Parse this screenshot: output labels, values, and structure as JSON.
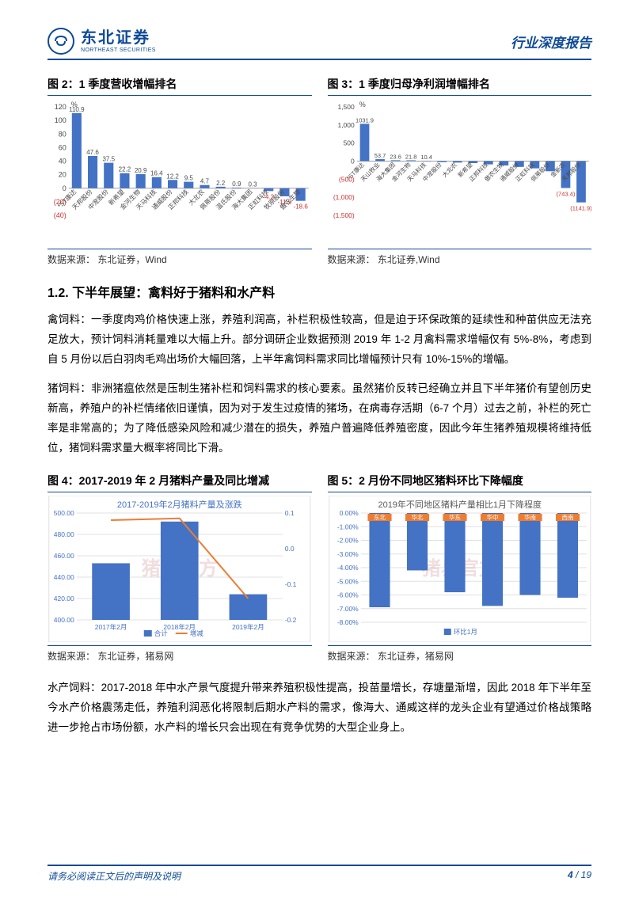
{
  "header": {
    "logo_cn": "东北证券",
    "logo_en": "NORTHEAST SECURITIES",
    "report_type": "行业深度报告"
  },
  "fig2": {
    "title": "图 2：1 季度营收增幅排名",
    "source": "数据来源： 东北证券，Wind",
    "type": "bar",
    "unit": "%",
    "ylim": [
      -40,
      120
    ],
    "ytick_step": 20,
    "bar_color": "#4472c4",
    "axis_color": "#9e9e9e",
    "neg_color": "#d03030",
    "categories": [
      "*ST康达",
      "天邦股份",
      "中宠股份",
      "新希望",
      "金河生物",
      "天马科技",
      "通威股份",
      "正邦科技",
      "大北农",
      "佩蒂股份",
      "温氏股份",
      "海大集团",
      "正虹科技",
      "牧原股份",
      "傲农生物"
    ],
    "values": [
      110.9,
      47.6,
      37.5,
      22.2,
      20.9,
      16.4,
      12.2,
      9.5,
      4.7,
      2.2,
      0.9,
      0.3,
      -4.2,
      -11.9,
      -18.6
    ]
  },
  "fig3": {
    "title": "图 3：1 季度归母净利润增幅排名",
    "source": "数据来源： 东北证券,Wind",
    "type": "bar",
    "unit": "%",
    "ylim": [
      -1500,
      1500
    ],
    "ytick_step": 500,
    "bar_color": "#4472c4",
    "axis_color": "#9e9e9e",
    "neg_color": "#d03030",
    "categories": [
      "*ST康达",
      "天山牧业",
      "海大集团",
      "金河生物",
      "天马科技",
      "中宠股份",
      "大北农",
      "新希望",
      "正邦科技",
      "傲农生物",
      "通威股份",
      "正虹科技",
      "佩蒂股份",
      "金新农",
      "天邦股份"
    ],
    "values": [
      1031.9,
      53.7,
      23.6,
      21.8,
      10.4,
      -28,
      -40,
      -55,
      -90,
      -120,
      -160,
      -200,
      -280,
      -743.4,
      -1141.9
    ]
  },
  "section12": {
    "heading": "1.2.   下半年展望：禽料好于猪料和水产料",
    "para1": "禽饲料：一季度肉鸡价格快速上涨，养殖利润高，补栏积极性较高，但是迫于环保政策的延续性和种苗供应无法充足放大，预计饲料消耗量难以大幅上升。部分调研企业数据预测 2019 年 1-2 月禽料需求增幅仅有 5%-8%，考虑到自 5 月份以后白羽肉毛鸡出场价大幅回落，上半年禽饲料需求同比增幅预计只有 10%-15%的增幅。",
    "para2": "猪饲料：非洲猪瘟依然是压制生猪补栏和饲料需求的核心要素。虽然猪价反转已经确立并且下半年猪价有望创历史新高，养殖户的补栏情绪依旧谨慎，因为对于发生过疫情的猪场，在病毒存活期（6-7 个月）过去之前，补栏的死亡率是非常高的；为了降低感染风险和减少潜在的损失，养殖户普遍降低养殖密度，因此今年生猪养殖规模将维持低位，猪饲料需求量大概率将同比下滑。"
  },
  "fig4": {
    "title": "图 4：2017-2019 年 2 月猪料产量及同比增减",
    "inner_title": "2017-2019年2月猪料产量及涨跌",
    "source": "数据来源： 东北证券，猪易网",
    "type": "bar_line",
    "bar_color": "#4472c4",
    "line_color": "#ed7d31",
    "grid_color": "#e0e0e0",
    "xcategories": [
      "2017年2月",
      "2018年2月",
      "2019年2月"
    ],
    "bar_values": [
      453,
      492,
      424
    ],
    "left_ylim": [
      400,
      500
    ],
    "left_step": 20,
    "line_values": [
      0.08,
      0.085,
      -0.14
    ],
    "right_ylim": [
      -0.2,
      0.1
    ],
    "right_step": 0.1,
    "legend": [
      "合计",
      "增减"
    ],
    "watermark": "猪易官方"
  },
  "fig5": {
    "title": "图 5：2 月份不同地区猪料环比下降幅度",
    "inner_title": "2019年不同地区猪料产量相比1月下降程度",
    "source": "数据来源： 东北证券，猪易网",
    "type": "bar",
    "bar_color": "#4472c4",
    "accent_color": "#ed7d31",
    "grid_color": "#e0e0e0",
    "ylim": [
      -8,
      0
    ],
    "ytick_step": 1,
    "categories": [
      "东北",
      "华北",
      "华东",
      "华中",
      "华南",
      "西南"
    ],
    "values": [
      -6.9,
      -4.2,
      -5.8,
      -6.8,
      -6.0,
      -6.2
    ],
    "legend": "环比1月",
    "watermark": "猪易官方"
  },
  "para3": "水产饲料：2017-2018 年中水产景气度提升带来养殖积极性提高，投苗量增长，存塘量渐增，因此 2018 年下半年至今水产价格震荡走低，养殖利润恶化将限制后期水产料的需求，像海大、通威这样的龙头企业有望通过价格战策略进一步抢占市场份额，水产料的增长只会出现在有竞争优势的大型企业身上。",
  "footer": {
    "disclaimer": "请务必阅读正文后的声明及说明",
    "page": "4",
    "total": "19"
  }
}
